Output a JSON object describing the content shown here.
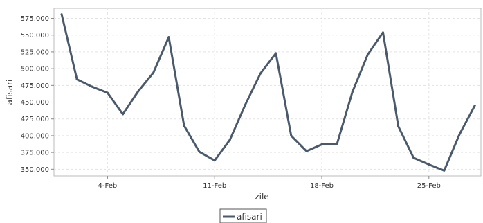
{
  "chart_data": {
    "type": "line",
    "title": "",
    "xlabel": "zile",
    "ylabel": "afisari",
    "ylim": [
      340000,
      590000
    ],
    "yticks": [
      350000,
      375000,
      400000,
      425000,
      450000,
      475000,
      500000,
      525000,
      550000,
      575000
    ],
    "ytick_labels": [
      "350.000",
      "375.000",
      "400.000",
      "425.000",
      "450.000",
      "475.000",
      "500.000",
      "525.000",
      "550.000",
      "575.000"
    ],
    "xticks": [
      {
        "day": 4,
        "label": "4-Feb"
      },
      {
        "day": 11,
        "label": "11-Feb"
      },
      {
        "day": 18,
        "label": "18-Feb"
      },
      {
        "day": 25,
        "label": "25-Feb"
      }
    ],
    "xlim": [
      0.5,
      28.4
    ],
    "grid": true,
    "legend": "bottom-center",
    "series": [
      {
        "name": "afisari",
        "color": "#4a5a6b",
        "x": [
          1,
          2,
          3,
          4,
          5,
          6,
          7,
          8,
          9,
          10,
          11,
          12,
          13,
          14,
          15,
          16,
          17,
          18,
          19,
          20,
          21,
          22,
          23,
          24,
          25,
          26,
          27,
          28
        ],
        "values": [
          581000,
          484000,
          473000,
          464000,
          432000,
          466000,
          494000,
          547000,
          415000,
          376000,
          363000,
          394000,
          446000,
          493000,
          523000,
          400000,
          377000,
          387000,
          388000,
          465000,
          521000,
          554000,
          414000,
          367000,
          357000,
          348000,
          402000,
          445000
        ]
      }
    ]
  }
}
